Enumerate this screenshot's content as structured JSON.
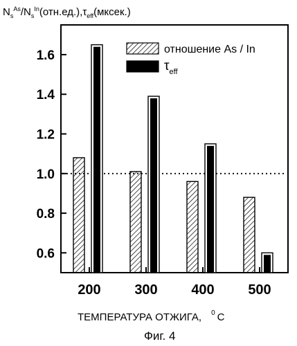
{
  "chart_data": {
    "type": "bar",
    "ylabel_parts": [
      "N",
      "s",
      "As",
      "/N",
      "s",
      "In",
      "(отн.ед.),",
      "τ",
      "eff",
      "(мксек.)"
    ],
    "xlabel_parts": [
      "ТЕМПЕРАТУРА ОТЖИГА,",
      "0",
      "C"
    ],
    "caption": "Фиг. 4",
    "categories": [
      "200",
      "300",
      "400",
      "500"
    ],
    "ylim": [
      0.5,
      1.75
    ],
    "yticks": [
      "0.6",
      "0.8",
      "1.0",
      "1.2",
      "1.4",
      "1.6"
    ],
    "reference_line": 1.0,
    "legend_position": "top-right",
    "series": [
      {
        "name": "отношение As / In",
        "pattern": "hatched",
        "values": [
          1.08,
          1.01,
          0.96,
          0.88
        ]
      },
      {
        "name_parts": [
          "τ",
          "eff"
        ],
        "pattern": "solid-black",
        "values": [
          1.65,
          1.39,
          1.15,
          0.6
        ]
      }
    ]
  }
}
